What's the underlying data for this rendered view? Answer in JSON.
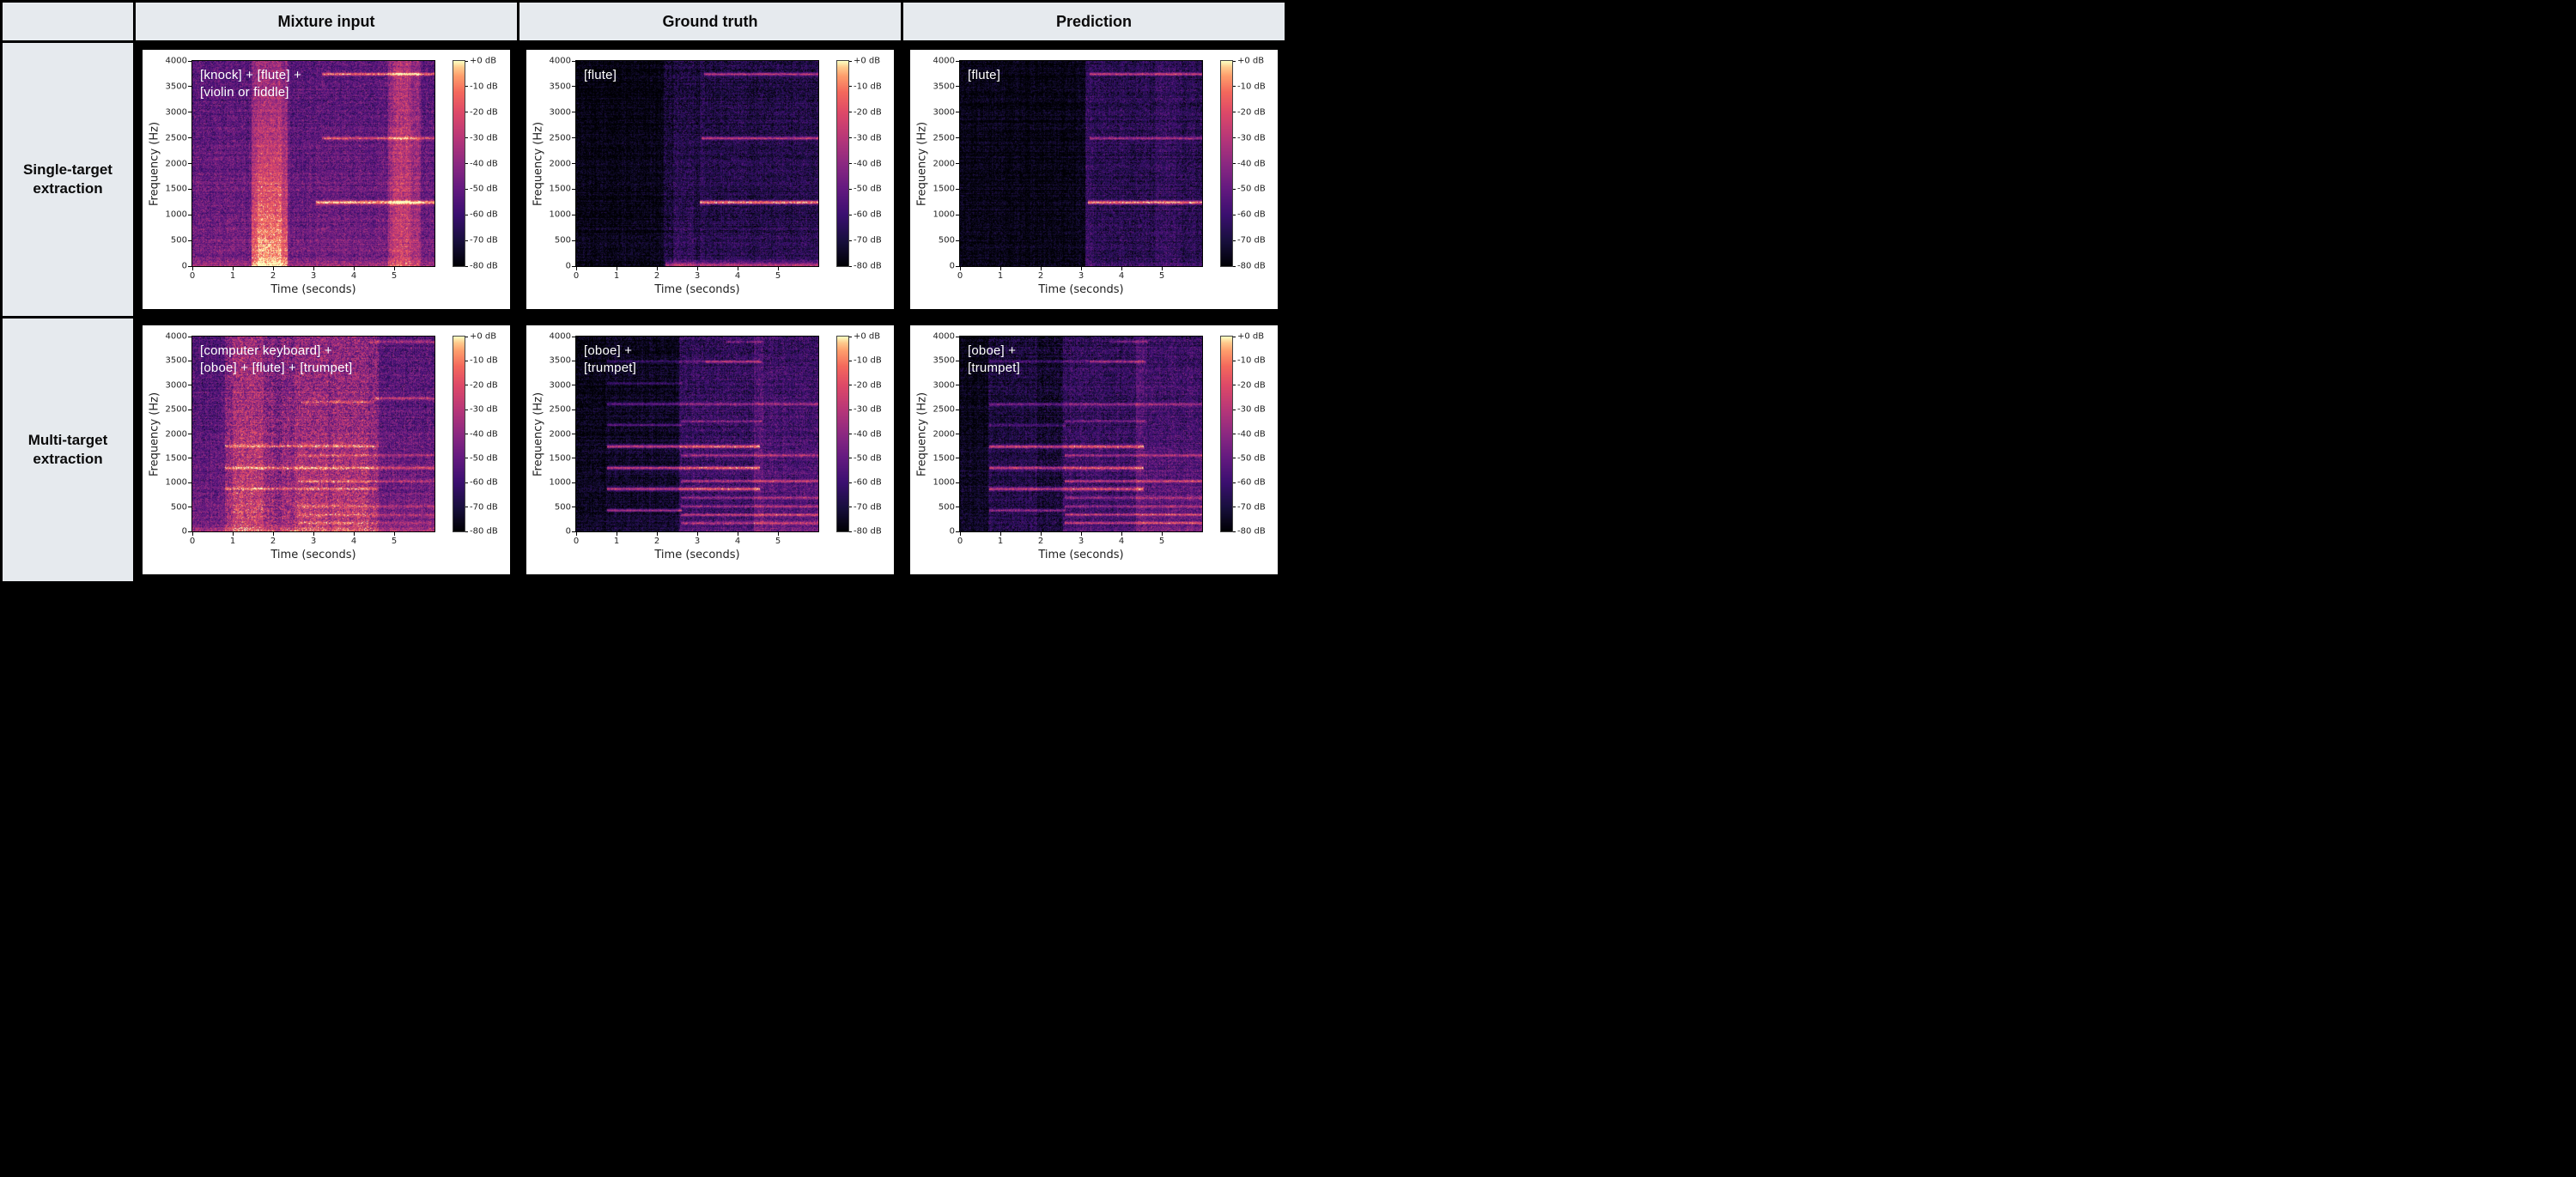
{
  "table": {
    "columns": [
      "",
      "Mixture input",
      "Ground truth",
      "Prediction"
    ],
    "rows": [
      "Single-target extraction",
      "Multi-target extraction"
    ]
  },
  "colors": {
    "table_border": "#000000",
    "header_bg": "#e6eaee",
    "figure_bg": "#ffffff",
    "annotation_color": "#ffffff",
    "tick_color": "#1f1f1f",
    "colormap": "magma"
  },
  "chart_data": {
    "type": "heatmap",
    "subtype": "audio-spectrogram-grid",
    "xlabel": "Time (seconds)",
    "ylabel": "Frequency (Hz)",
    "x_range_seconds": [
      0,
      6
    ],
    "y_range_hz": [
      0,
      4000
    ],
    "xticks": [
      0,
      1,
      2,
      3,
      4,
      5
    ],
    "yticks": [
      0,
      500,
      1000,
      1500,
      2000,
      2500,
      3000,
      3500,
      4000
    ],
    "colorbar": {
      "ticks": [
        "+0 dB",
        "-10 dB",
        "-20 dB",
        "-30 dB",
        "-40 dB",
        "-50 dB",
        "-60 dB",
        "-70 dB",
        "-80 dB"
      ],
      "range_db": [
        0,
        -80
      ],
      "colormap": "magma",
      "position": "right"
    },
    "grid": false,
    "plots": [
      {
        "id": "single-mixture",
        "row": 0,
        "col": 0,
        "row_label": "Single-target extraction",
        "col_label": "Mixture input",
        "annotation_lines": [
          "[knock] + [flute] +",
          "[violin or fiddle]"
        ],
        "events": {
          "knock_band_s": [
            1.45,
            2.35
          ],
          "violin_band_s": [
            4.85,
            5.65
          ],
          "flute_harmonics_hz": [
            1250,
            2500,
            3750
          ],
          "flute_onset_s": 3.1
        },
        "seed": 11,
        "lowfreq_boost": 0.1,
        "bottom_glow": 0.16,
        "bottom_glow_t0": 0,
        "segments": [
          {
            "t0": 0,
            "t1": 6,
            "level": 0.34,
            "var": 0.7
          }
        ],
        "vbands": [
          {
            "t0": 1.45,
            "t1": 2.35,
            "amp": 0.15,
            "low": 0.24
          },
          {
            "t0": 1.6,
            "t1": 2.2,
            "amp": 0.06,
            "low": 0.08
          },
          {
            "t0": 4.85,
            "t1": 5.65,
            "amp": 0.16,
            "low": 0.0
          },
          {
            "t0": 4.95,
            "t1": 5.4,
            "amp": 0.1,
            "low": 0.0
          }
        ],
        "hlines": [
          {
            "f": 3750,
            "t0": 3.2,
            "t1": 6,
            "amp": 0.55,
            "w": 1.6
          },
          {
            "f": 2500,
            "t0": 3.2,
            "t1": 6,
            "amp": 0.45,
            "w": 1.6
          },
          {
            "f": 1250,
            "t0": 3.05,
            "t1": 6,
            "amp": 0.62,
            "w": 2.0
          },
          {
            "f": 1630,
            "t0": 0,
            "t1": 6,
            "amp": 0.07,
            "w": 1.5
          }
        ]
      },
      {
        "id": "single-ground-truth",
        "row": 0,
        "col": 1,
        "row_label": "Single-target extraction",
        "col_label": "Ground truth",
        "annotation_lines": [
          "[flute]"
        ],
        "events": {
          "silence_until_s": 2.15,
          "breath_noise_s": [
            2.15,
            3.05
          ],
          "flute_harmonics_hz": [
            1250,
            2500,
            3750
          ],
          "flute_onset_s": 3.05
        },
        "seed": 22,
        "lowfreq_boost": 0.02,
        "bottom_glow": 0.5,
        "bottom_glow_t0": 2.2,
        "segments": [
          {
            "t0": 0,
            "t1": 2.15,
            "level": 0.015,
            "var": 0.5
          },
          {
            "t0": 2.15,
            "t1": 3.05,
            "level": 0.11,
            "var": 1.8
          },
          {
            "t0": 3.05,
            "t1": 6,
            "level": 0.15,
            "var": 1.2
          }
        ],
        "vbands": [
          {
            "t0": 2.4,
            "t1": 2.9,
            "amp": 0.03,
            "low": 0.06
          }
        ],
        "hlines": [
          {
            "f": 3750,
            "t0": 3.15,
            "t1": 6,
            "amp": 0.5,
            "w": 1.6
          },
          {
            "f": 2500,
            "t0": 3.1,
            "t1": 6,
            "amp": 0.5,
            "w": 1.6
          },
          {
            "f": 1250,
            "t0": 3.05,
            "t1": 6,
            "amp": 0.78,
            "w": 2.0
          }
        ]
      },
      {
        "id": "single-prediction",
        "row": 0,
        "col": 2,
        "row_label": "Single-target extraction",
        "col_label": "Prediction",
        "annotation_lines": [
          "[flute]"
        ],
        "events": {
          "silence_until_s": 3.1,
          "flute_harmonics_hz": [
            1250,
            2500,
            3750
          ],
          "flute_onset_s": 3.1
        },
        "seed": 33,
        "lowfreq_boost": 0.02,
        "bottom_glow": 0.1,
        "bottom_glow_t0": 3.1,
        "segments": [
          {
            "t0": 0,
            "t1": 3.1,
            "level": 0.013,
            "var": 0.5
          },
          {
            "t0": 3.1,
            "t1": 6,
            "level": 0.16,
            "var": 1.2
          }
        ],
        "vbands": [
          {
            "t0": 4.85,
            "t1": 5.35,
            "amp": 0.05,
            "low": 0
          },
          {
            "t0": 3.1,
            "t1": 3.3,
            "amp": 0.03,
            "low": 0.03
          }
        ],
        "hlines": [
          {
            "f": 3750,
            "t0": 3.2,
            "t1": 6,
            "amp": 0.5,
            "w": 1.6
          },
          {
            "f": 2500,
            "t0": 3.2,
            "t1": 6,
            "amp": 0.42,
            "w": 1.6
          },
          {
            "f": 1250,
            "t0": 3.15,
            "t1": 6,
            "amp": 0.72,
            "w": 2.0
          }
        ]
      },
      {
        "id": "multi-mixture",
        "row": 1,
        "col": 0,
        "row_label": "Multi-target extraction",
        "col_label": "Mixture input",
        "annotation_lines": [
          "[computer keyboard] +",
          "[oboe] + [flute] + [trumpet]"
        ],
        "events": {
          "dense_mixture_s": [
            0.8,
            4.6
          ],
          "visible_harmonics_hz": [
            180,
            350,
            520,
            880,
            1040,
            1310,
            1570,
            1760,
            2660,
            3900
          ]
        },
        "seed": 44,
        "lowfreq_boost": 0.12,
        "bottom_glow": 0.2,
        "bottom_glow_t0": 0,
        "segments": [
          {
            "t0": 0,
            "t1": 0.8,
            "level": 0.3,
            "var": 0.8
          },
          {
            "t0": 0.8,
            "t1": 4.6,
            "level": 0.45,
            "var": 0.9
          },
          {
            "t0": 4.6,
            "t1": 6,
            "level": 0.33,
            "var": 0.8
          }
        ],
        "vbands": [
          {
            "t0": 1.0,
            "t1": 1.75,
            "amp": 0.09,
            "low": 0.05
          },
          {
            "t0": 2.0,
            "t1": 2.2,
            "amp": -0.05,
            "low": 0
          },
          {
            "t0": 2.55,
            "t1": 3.35,
            "amp": 0.05,
            "low": 0.03
          },
          {
            "t0": 3.45,
            "t1": 4.35,
            "amp": 0.05,
            "low": 0.03
          }
        ],
        "hlines": [
          {
            "f": 880,
            "t0": 0.8,
            "t1": 4.6,
            "amp": 0.26,
            "w": 1.6
          },
          {
            "f": 1310,
            "t0": 0.8,
            "t1": 6,
            "amp": 0.3,
            "w": 1.8
          },
          {
            "f": 1760,
            "t0": 0.8,
            "t1": 4.6,
            "amp": 0.32,
            "w": 1.8
          },
          {
            "f": 1040,
            "t0": 2.6,
            "t1": 6,
            "amp": 0.26,
            "w": 1.6
          },
          {
            "f": 520,
            "t0": 2.6,
            "t1": 6,
            "amp": 0.2,
            "w": 1.4
          },
          {
            "f": 350,
            "t0": 2.6,
            "t1": 6,
            "amp": 0.22,
            "w": 1.4
          },
          {
            "f": 180,
            "t0": 2.6,
            "t1": 6,
            "amp": 0.2,
            "w": 1.4
          },
          {
            "f": 1570,
            "t0": 2.6,
            "t1": 6,
            "amp": 0.22,
            "w": 1.5
          },
          {
            "f": 2660,
            "t0": 2.7,
            "t1": 4.5,
            "amp": 0.26,
            "w": 1.5
          },
          {
            "f": 2740,
            "t0": 4.5,
            "t1": 6,
            "amp": 0.3,
            "w": 1.6
          },
          {
            "f": 3900,
            "t0": 4.35,
            "t1": 6,
            "amp": 0.26,
            "w": 1.6
          }
        ]
      },
      {
        "id": "multi-ground-truth",
        "row": 1,
        "col": 1,
        "row_label": "Multi-target extraction",
        "col_label": "Ground truth",
        "annotation_lines": [
          "[oboe] +",
          "[trumpet]"
        ],
        "events": {
          "silence_until_s": 0.72,
          "oboe_harmonics_hz": [
            440,
            880,
            1310,
            1750,
            2190,
            2620,
            3050,
            3500
          ],
          "oboe_onset_s": 0.75,
          "trumpet_onset_s": 2.58
        },
        "seed": 55,
        "lowfreq_boost": 0.05,
        "bottom_glow": 0.1,
        "bottom_glow_t0": 2.55,
        "segments": [
          {
            "t0": 0,
            "t1": 0.72,
            "level": 0.02,
            "var": 0.5
          },
          {
            "t0": 0.72,
            "t1": 2.55,
            "level": 0.05,
            "var": 1.4
          },
          {
            "t0": 2.55,
            "t1": 6,
            "level": 0.21,
            "var": 1.1
          }
        ],
        "vbands": [
          {
            "t0": 4.4,
            "t1": 4.62,
            "amp": 0.08,
            "low": 0.05
          },
          {
            "t0": 4.62,
            "t1": 6,
            "amp": 0.03,
            "low": 0.06
          }
        ],
        "hlines": [
          {
            "f": 440,
            "t0": 0.75,
            "t1": 2.6,
            "amp": 0.5,
            "w": 1.6
          },
          {
            "f": 880,
            "t0": 0.75,
            "t1": 4.55,
            "amp": 0.55,
            "w": 1.8
          },
          {
            "f": 1310,
            "t0": 0.75,
            "t1": 4.55,
            "amp": 0.6,
            "w": 1.8
          },
          {
            "f": 1750,
            "t0": 0.75,
            "t1": 4.55,
            "amp": 0.6,
            "w": 1.8
          },
          {
            "f": 2190,
            "t0": 0.75,
            "t1": 2.6,
            "amp": 0.28,
            "w": 1.4
          },
          {
            "f": 2620,
            "t0": 0.75,
            "t1": 6,
            "amp": 0.34,
            "w": 1.5
          },
          {
            "f": 3050,
            "t0": 0.75,
            "t1": 2.6,
            "amp": 0.2,
            "w": 1.3
          },
          {
            "f": 3500,
            "t0": 0.75,
            "t1": 4.55,
            "amp": 0.24,
            "w": 1.4
          },
          {
            "f": 180,
            "t0": 2.58,
            "t1": 6,
            "amp": 0.4,
            "w": 1.5
          },
          {
            "f": 350,
            "t0": 2.58,
            "t1": 6,
            "amp": 0.42,
            "w": 1.5
          },
          {
            "f": 520,
            "t0": 2.58,
            "t1": 6,
            "amp": 0.34,
            "w": 1.4
          },
          {
            "f": 700,
            "t0": 2.58,
            "t1": 6,
            "amp": 0.32,
            "w": 1.4
          },
          {
            "f": 1040,
            "t0": 2.58,
            "t1": 6,
            "amp": 0.4,
            "w": 1.5
          },
          {
            "f": 1570,
            "t0": 2.58,
            "t1": 6,
            "amp": 0.38,
            "w": 1.5
          },
          {
            "f": 2270,
            "t0": 2.58,
            "t1": 4.6,
            "amp": 0.28,
            "w": 1.3
          },
          {
            "f": 3490,
            "t0": 3.2,
            "t1": 4.6,
            "amp": 0.26,
            "w": 1.3
          },
          {
            "f": 3900,
            "t0": 3.7,
            "t1": 4.65,
            "amp": 0.26,
            "w": 1.3
          }
        ]
      },
      {
        "id": "multi-prediction",
        "row": 1,
        "col": 2,
        "row_label": "Multi-target extraction",
        "col_label": "Prediction",
        "annotation_lines": [
          "[oboe] +",
          "[trumpet]"
        ],
        "events": {
          "silence_until_s": 0.7,
          "oboe_harmonics_hz": [
            440,
            880,
            1310,
            1750,
            2190,
            2620,
            3500
          ],
          "oboe_onset_s": 0.72,
          "trumpet_onset_s": 2.58
        },
        "seed": 66,
        "lowfreq_boost": 0.06,
        "bottom_glow": 0.1,
        "bottom_glow_t0": 2.55,
        "segments": [
          {
            "t0": 0,
            "t1": 0.7,
            "level": 0.025,
            "var": 0.6
          },
          {
            "t0": 0.7,
            "t1": 2.55,
            "level": 0.12,
            "var": 1.5
          },
          {
            "t0": 2.55,
            "t1": 6,
            "level": 0.21,
            "var": 1.1
          }
        ],
        "vbands": [
          {
            "t0": 4.35,
            "t1": 4.62,
            "amp": 0.08,
            "low": 0.04
          },
          {
            "t0": 4.62,
            "t1": 6,
            "amp": 0.03,
            "low": 0.08
          },
          {
            "t0": 1.9,
            "t1": 2.5,
            "amp": -0.04,
            "low": 0
          }
        ],
        "hlines": [
          {
            "f": 440,
            "t0": 0.72,
            "t1": 2.6,
            "amp": 0.38,
            "w": 1.5
          },
          {
            "f": 880,
            "t0": 0.72,
            "t1": 4.55,
            "amp": 0.5,
            "w": 1.8
          },
          {
            "f": 1310,
            "t0": 0.72,
            "t1": 4.55,
            "amp": 0.58,
            "w": 1.8
          },
          {
            "f": 1750,
            "t0": 0.72,
            "t1": 4.55,
            "amp": 0.58,
            "w": 1.8
          },
          {
            "f": 2190,
            "t0": 0.72,
            "t1": 2.6,
            "amp": 0.22,
            "w": 1.3
          },
          {
            "f": 2620,
            "t0": 0.72,
            "t1": 6,
            "amp": 0.34,
            "w": 1.5
          },
          {
            "f": 3500,
            "t0": 0.72,
            "t1": 4.55,
            "amp": 0.2,
            "w": 1.3
          },
          {
            "f": 180,
            "t0": 2.58,
            "t1": 6,
            "amp": 0.38,
            "w": 1.5
          },
          {
            "f": 350,
            "t0": 2.58,
            "t1": 6,
            "amp": 0.4,
            "w": 1.5
          },
          {
            "f": 520,
            "t0": 2.58,
            "t1": 6,
            "amp": 0.32,
            "w": 1.4
          },
          {
            "f": 700,
            "t0": 2.58,
            "t1": 6,
            "amp": 0.3,
            "w": 1.4
          },
          {
            "f": 1040,
            "t0": 2.58,
            "t1": 6,
            "amp": 0.4,
            "w": 1.5
          },
          {
            "f": 1570,
            "t0": 2.58,
            "t1": 6,
            "amp": 0.36,
            "w": 1.5
          },
          {
            "f": 2270,
            "t0": 2.58,
            "t1": 4.6,
            "amp": 0.26,
            "w": 1.3
          },
          {
            "f": 3490,
            "t0": 3.2,
            "t1": 4.6,
            "amp": 0.24,
            "w": 1.3
          },
          {
            "f": 3900,
            "t0": 3.7,
            "t1": 4.65,
            "amp": 0.26,
            "w": 1.3
          }
        ]
      }
    ]
  }
}
